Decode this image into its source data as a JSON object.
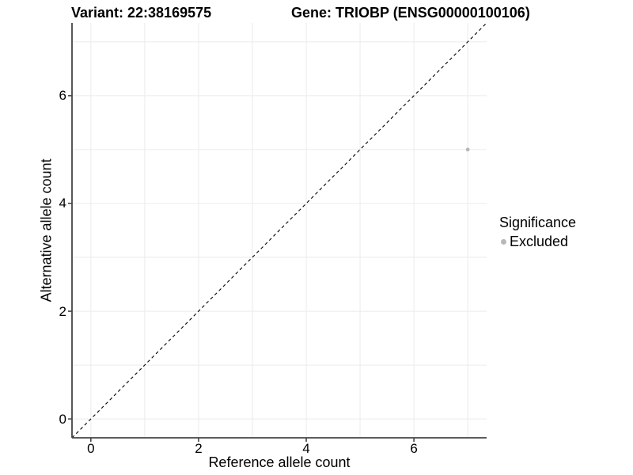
{
  "chart_data": {
    "type": "scatter",
    "titles": {
      "left": "Variant: 22:38169575",
      "right": "Gene: TRIOBP (ENSG00000100106)"
    },
    "xlabel": "Reference allele count",
    "ylabel": "Alternative allele count",
    "xlim": [
      -0.35,
      7.35
    ],
    "ylim": [
      -0.35,
      7.35
    ],
    "xticks": [
      0,
      2,
      4,
      6
    ],
    "yticks": [
      0,
      2,
      4,
      6
    ],
    "grid": {
      "show": true,
      "lines_at": [
        0,
        1,
        2,
        3,
        4,
        5,
        6,
        7
      ],
      "color": "#ebebeb"
    },
    "reference_line": {
      "shape": "y = x",
      "style": "dashed",
      "color": "#000000"
    },
    "series": [
      {
        "name": "Excluded",
        "color": "#b8b8b8",
        "points": [
          {
            "x": 7,
            "y": 5
          }
        ]
      }
    ],
    "legend": {
      "title": "Significance",
      "position": "right",
      "items": [
        {
          "label": "Excluded",
          "color": "#b8b8b8",
          "marker": "circle"
        }
      ]
    },
    "colors": {
      "axis": "#454545",
      "grid": "#ebebeb",
      "text": "#000000"
    }
  }
}
